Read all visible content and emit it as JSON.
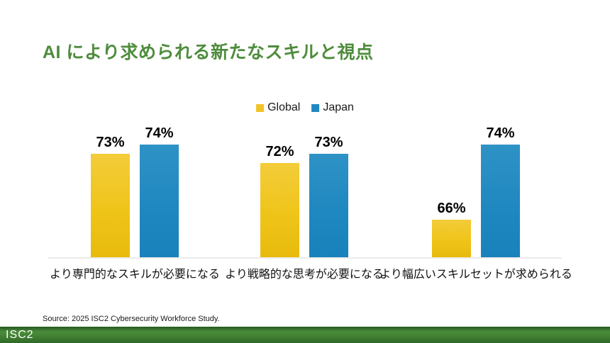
{
  "slide": {
    "title": "AI により求められる新たなスキルと視点",
    "source": "Source: 2025 ISC2 Cybersecurity Workforce Study.",
    "footer_logo": "ISC2"
  },
  "colors": {
    "title_green": "#4E8C3C",
    "footer_green": "#3F7F33",
    "global_yellow": "#F0C429",
    "japan_blue": "#2088C0",
    "axis_line": "#EBEBEB"
  },
  "chart_data": {
    "type": "bar",
    "title": "",
    "xlabel": "",
    "ylabel": "",
    "categories": [
      "より専門的なスキルが必要になる",
      "より戦略的な思考が必要になる",
      "より幅広いスキルセットが求められる"
    ],
    "series": [
      {
        "name": "Global",
        "color": "#F0C429",
        "values": [
          73,
          72,
          66
        ]
      },
      {
        "name": "Japan",
        "color": "#2088C0",
        "values": [
          74,
          73,
          74
        ]
      }
    ],
    "value_suffix": "%",
    "value_labels": [
      "73%",
      "74%",
      "72%",
      "73%",
      "66%",
      "74%"
    ],
    "ylim": [
      62,
      76
    ],
    "grid": false,
    "legend_position": "top-center"
  }
}
